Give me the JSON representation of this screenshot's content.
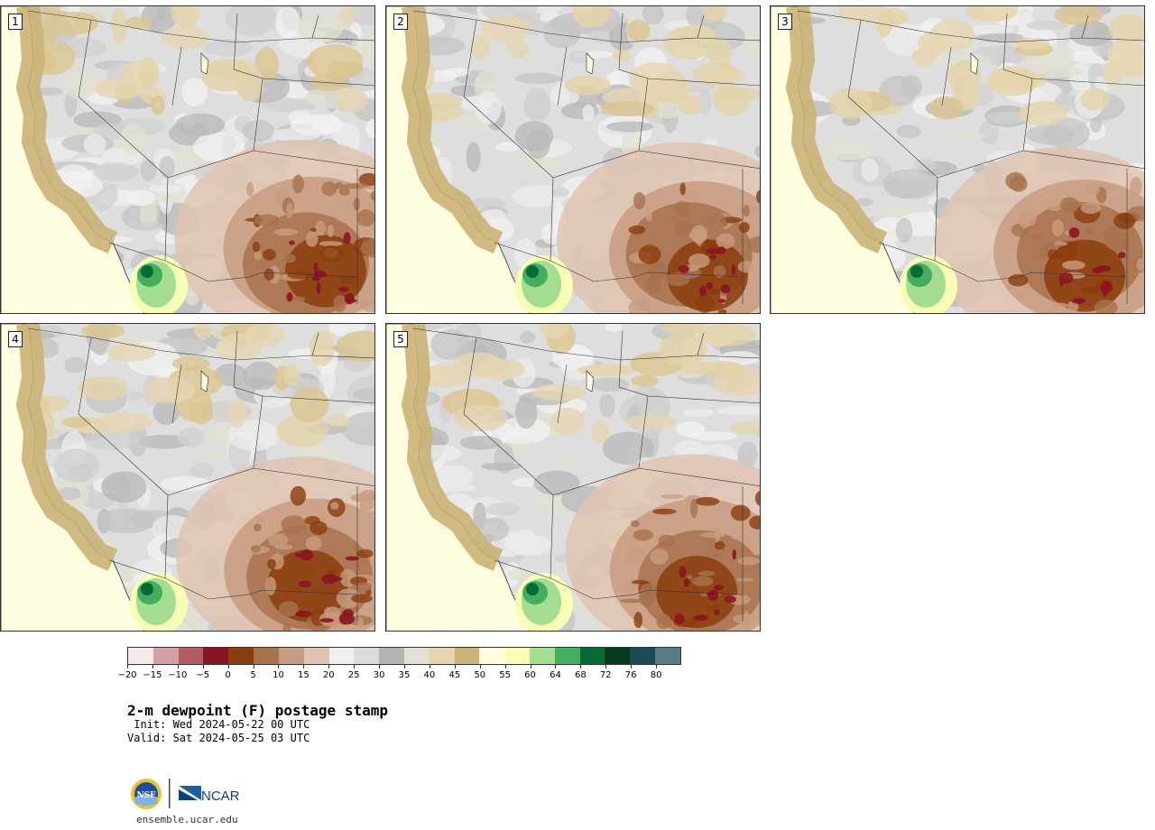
{
  "panels": [
    {
      "label": "1",
      "seed": 11
    },
    {
      "label": "2",
      "seed": 23
    },
    {
      "label": "3",
      "seed": 37
    },
    {
      "label": "4",
      "seed": 41
    },
    {
      "label": "5",
      "seed": 59
    }
  ],
  "colorbar": {
    "colors": [
      "#f5ebeb",
      "#d4a0a4",
      "#b25d63",
      "#8a1520",
      "#8b3d0c",
      "#a8724e",
      "#c89c80",
      "#e0c4b2",
      "#f0f0f0",
      "#dcdcdc",
      "#b4b4b4",
      "#e2e0d2",
      "#e6d6b0",
      "#cbb377",
      "#fffce2",
      "#f8feb4",
      "#a3dd92",
      "#44ae5e",
      "#046c34",
      "#043c1c",
      "#1a4c58",
      "#567c84"
    ],
    "ticks": [
      "−20",
      "−15",
      "−10",
      "−5",
      "0",
      "5",
      "10",
      "15",
      "20",
      "25",
      "30",
      "35",
      "40",
      "45",
      "50",
      "55",
      "60",
      "64",
      "68",
      "72",
      "76",
      "80"
    ]
  },
  "title": "2-m dewpoint (F) postage stamp",
  "init": " Init: Wed 2024-05-22 00 UTC",
  "valid": "Valid: Sat 2024-05-25 03 UTC",
  "logos": {
    "left": "NSF",
    "right": "NCAR"
  },
  "url": "ensemble.ucar.edu"
}
